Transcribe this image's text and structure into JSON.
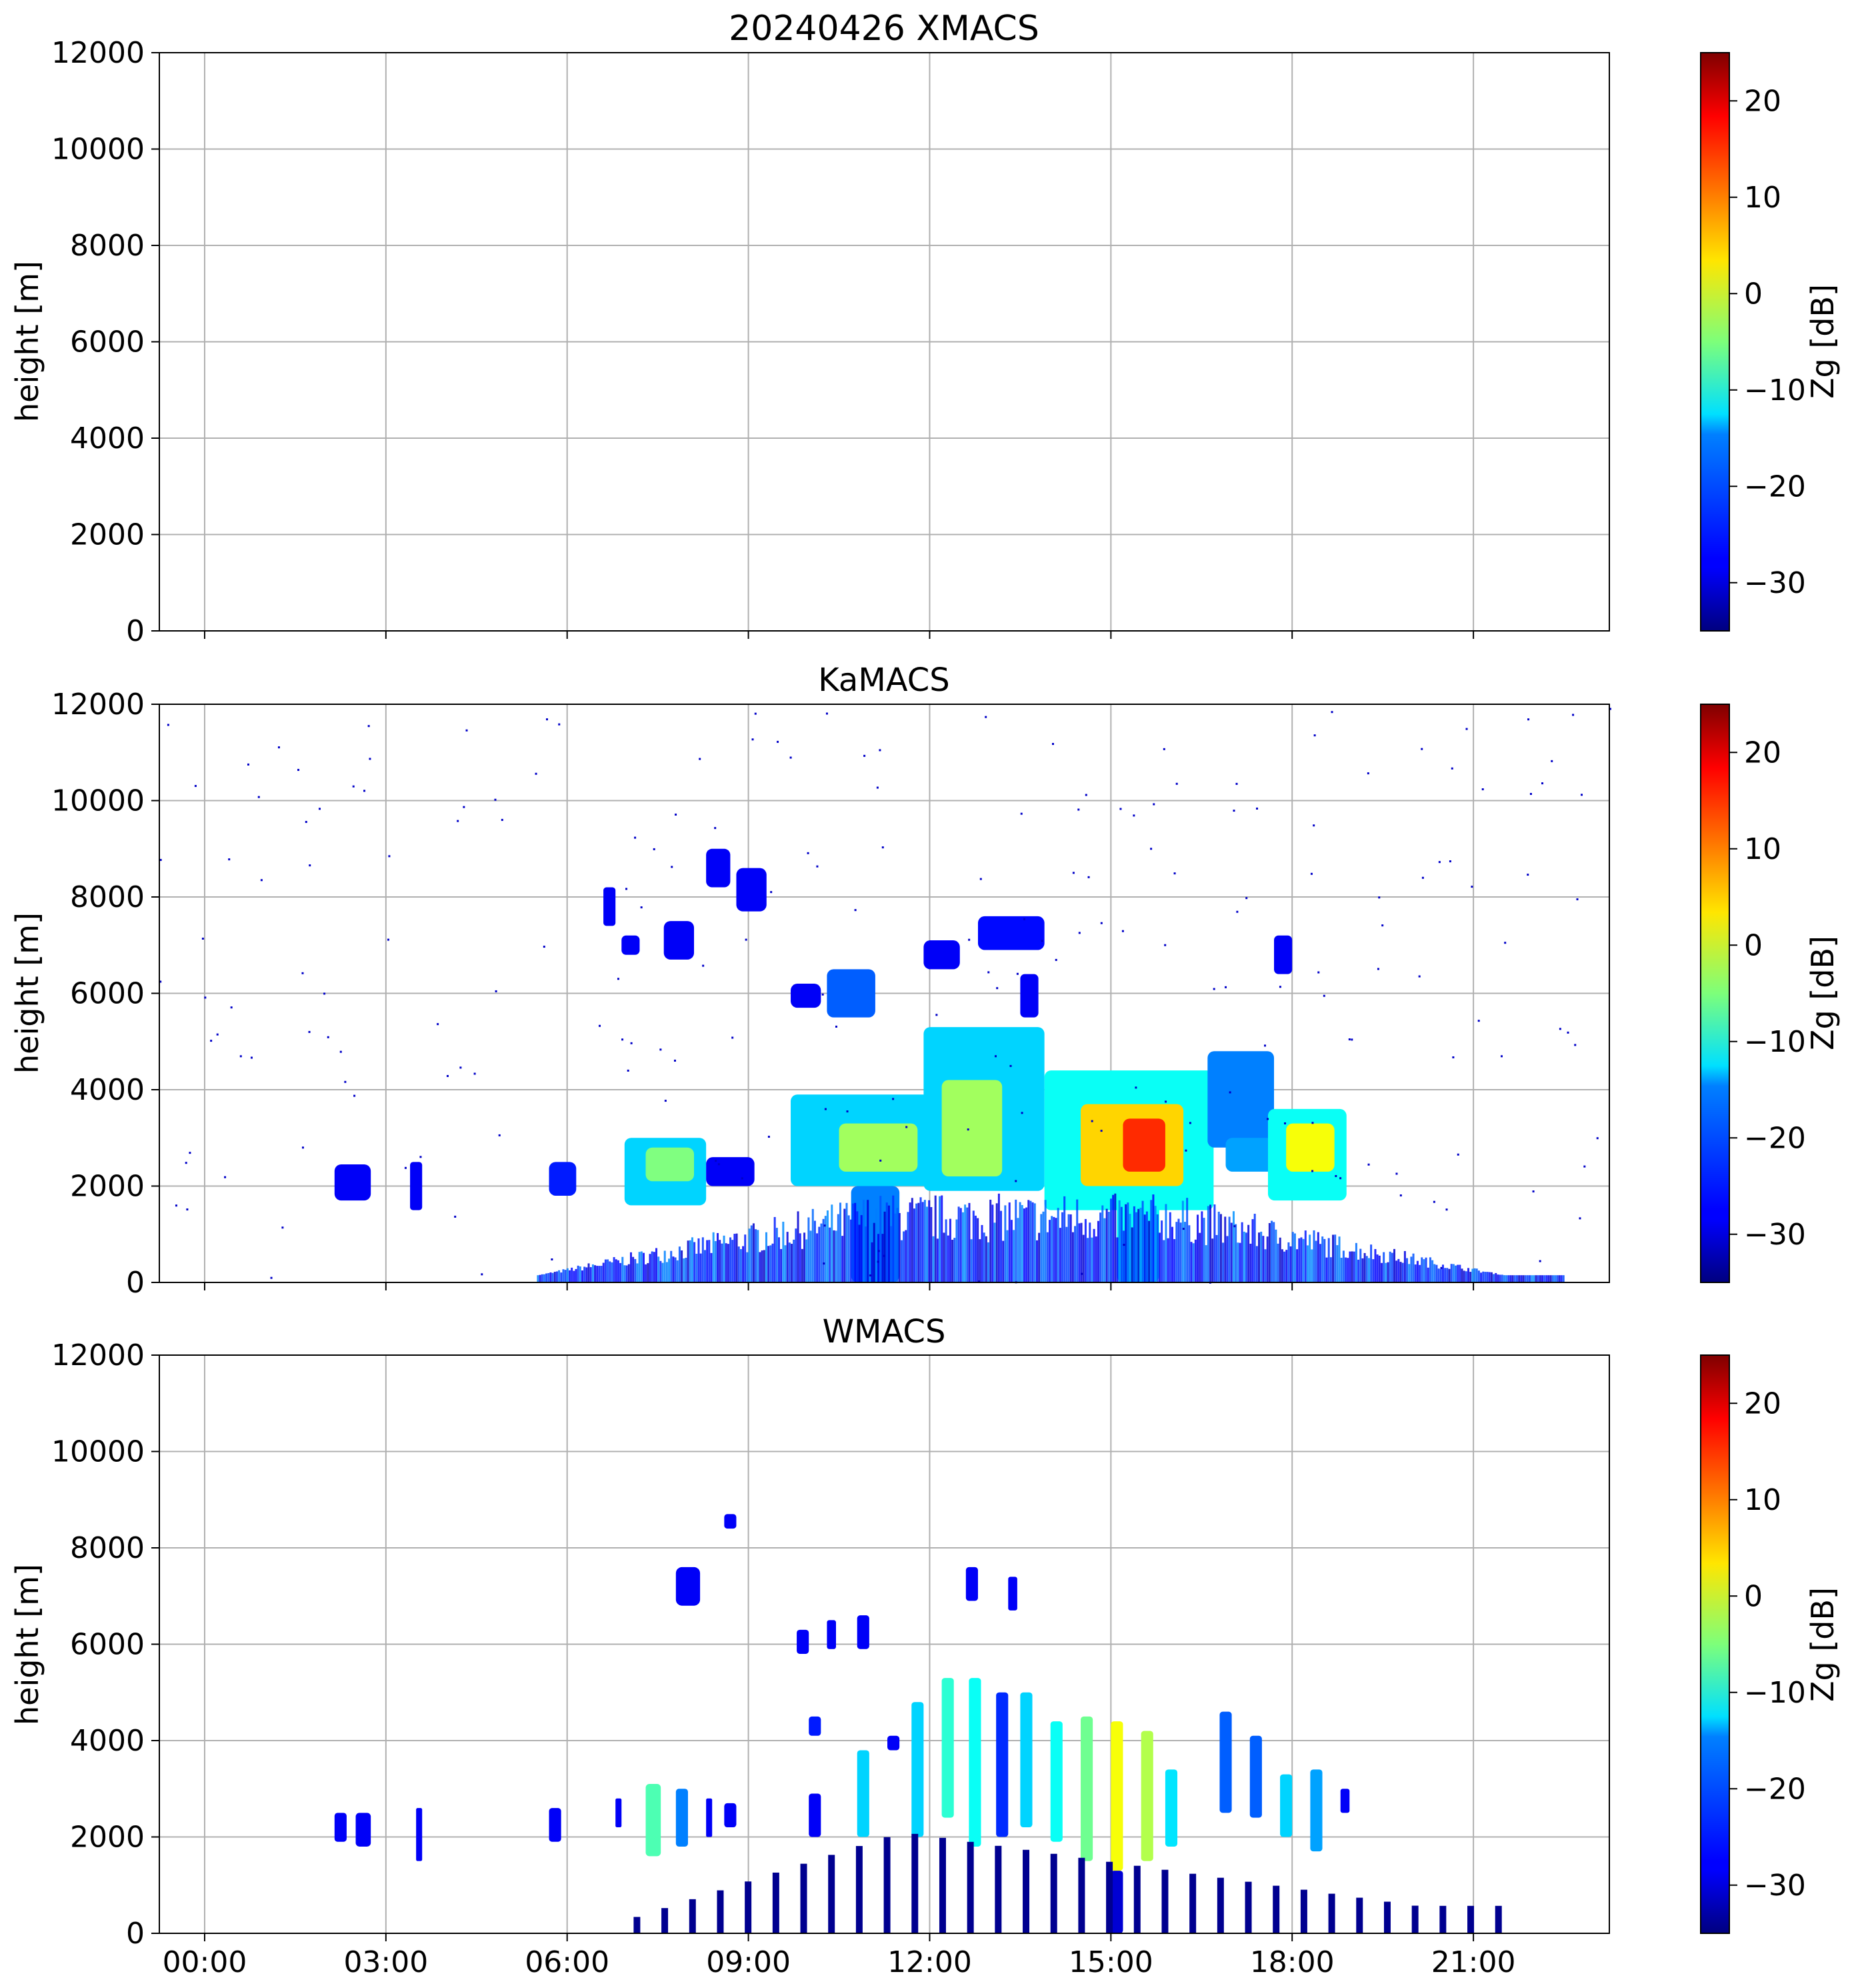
{
  "chart_data": [
    {
      "type": "heatmap",
      "title": "20240426 XMACS",
      "xlabel": "",
      "ylabel": "height [m]",
      "ylim": [
        0,
        12000
      ],
      "xlim_hours": [
        -0.75,
        23.25
      ],
      "yticks": [
        0,
        2000,
        4000,
        6000,
        8000,
        10000,
        12000
      ],
      "xtick_labels": [],
      "grid": true,
      "colorbar": {
        "label": "Zg [dB]",
        "range": [
          -35,
          25
        ],
        "ticks": [
          -30,
          -20,
          -10,
          0,
          10,
          20
        ]
      },
      "echoes": []
    },
    {
      "type": "heatmap",
      "title": "KaMACS",
      "xlabel": "",
      "ylabel": "height [m]",
      "ylim": [
        0,
        12000
      ],
      "xlim_hours": [
        -0.75,
        23.25
      ],
      "yticks": [
        0,
        2000,
        4000,
        6000,
        8000,
        10000,
        12000
      ],
      "xtick_labels": [],
      "grid": true,
      "colorbar": {
        "label": "Zg [dB]",
        "range": [
          -35,
          25
        ],
        "ticks": [
          -30,
          -20,
          -10,
          0,
          10,
          20
        ]
      },
      "echoes": [
        {
          "t0": 2.15,
          "t1": 2.75,
          "h0": 1700,
          "h1": 2450,
          "z": -28
        },
        {
          "t0": 3.4,
          "t1": 3.6,
          "h0": 1500,
          "h1": 2500,
          "z": -28
        },
        {
          "t0": 5.7,
          "t1": 6.15,
          "h0": 1800,
          "h1": 2500,
          "z": -26
        },
        {
          "t0": 6.95,
          "t1": 8.3,
          "h0": 1600,
          "h1": 3000,
          "z": -15
        },
        {
          "t0": 7.3,
          "t1": 8.1,
          "h0": 2100,
          "h1": 2800,
          "z": -5
        },
        {
          "t0": 8.3,
          "t1": 9.1,
          "h0": 2000,
          "h1": 2600,
          "z": -28
        },
        {
          "t0": 6.6,
          "t1": 6.8,
          "h0": 7400,
          "h1": 8200,
          "z": -28
        },
        {
          "t0": 6.9,
          "t1": 7.2,
          "h0": 6800,
          "h1": 7200,
          "z": -28
        },
        {
          "t0": 7.6,
          "t1": 8.1,
          "h0": 6700,
          "h1": 7500,
          "z": -28
        },
        {
          "t0": 8.3,
          "t1": 8.7,
          "h0": 8200,
          "h1": 9000,
          "z": -28
        },
        {
          "t0": 8.8,
          "t1": 9.3,
          "h0": 7700,
          "h1": 8600,
          "z": -28
        },
        {
          "t0": 9.7,
          "t1": 10.2,
          "h0": 5700,
          "h1": 6200,
          "z": -28
        },
        {
          "t0": 10.3,
          "t1": 11.1,
          "h0": 5500,
          "h1": 6500,
          "z": -22
        },
        {
          "t0": 11.9,
          "t1": 12.5,
          "h0": 6500,
          "h1": 7100,
          "z": -28
        },
        {
          "t0": 12.8,
          "t1": 13.9,
          "h0": 6900,
          "h1": 7600,
          "z": -27
        },
        {
          "t0": 13.5,
          "t1": 13.8,
          "h0": 5500,
          "h1": 6400,
          "z": -28
        },
        {
          "t0": 17.7,
          "t1": 18.0,
          "h0": 6400,
          "h1": 7200,
          "z": -28
        },
        {
          "t0": 9.7,
          "t1": 12.0,
          "h0": 2000,
          "h1": 3900,
          "z": -15
        },
        {
          "t0": 10.5,
          "t1": 11.8,
          "h0": 2300,
          "h1": 3300,
          "z": -3
        },
        {
          "t0": 11.9,
          "t1": 13.9,
          "h0": 1900,
          "h1": 5300,
          "z": -15
        },
        {
          "t0": 12.2,
          "t1": 13.2,
          "h0": 2200,
          "h1": 4200,
          "z": -3
        },
        {
          "t0": 13.9,
          "t1": 16.7,
          "h0": 1500,
          "h1": 4400,
          "z": -12
        },
        {
          "t0": 14.5,
          "t1": 16.2,
          "h0": 2000,
          "h1": 3700,
          "z": 5
        },
        {
          "t0": 15.2,
          "t1": 15.9,
          "h0": 2300,
          "h1": 3400,
          "z": 15
        },
        {
          "t0": 16.6,
          "t1": 17.7,
          "h0": 2800,
          "h1": 4800,
          "z": -20
        },
        {
          "t0": 16.9,
          "t1": 17.7,
          "h0": 2300,
          "h1": 3000,
          "z": -18
        },
        {
          "t0": 17.6,
          "t1": 18.9,
          "h0": 1700,
          "h1": 3600,
          "z": -12
        },
        {
          "t0": 17.9,
          "t1": 18.7,
          "h0": 2300,
          "h1": 3300,
          "z": 2
        },
        {
          "t0": 10.7,
          "t1": 11.5,
          "h0": 0,
          "h1": 2000,
          "z": -20
        },
        {
          "t0": 15.1,
          "t1": 15.8,
          "h0": 0,
          "h1": 1800,
          "z": -12
        }
      ]
    },
    {
      "type": "heatmap",
      "title": "WMACS",
      "xlabel": "",
      "ylabel": "height [m]",
      "ylim": [
        0,
        12000
      ],
      "xlim_hours": [
        -0.75,
        23.25
      ],
      "yticks": [
        0,
        2000,
        4000,
        6000,
        8000,
        10000,
        12000
      ],
      "xtick_labels": [
        "00:00",
        "03:00",
        "06:00",
        "09:00",
        "12:00",
        "15:00",
        "18:00",
        "21:00"
      ],
      "grid": true,
      "colorbar": {
        "label": "Zg [dB]",
        "range": [
          -35,
          25
        ],
        "ticks": [
          -30,
          -20,
          -10,
          0,
          10,
          20
        ]
      },
      "echoes": [
        {
          "t0": 2.15,
          "t1": 2.35,
          "h0": 1900,
          "h1": 2500,
          "z": -28
        },
        {
          "t0": 2.5,
          "t1": 2.75,
          "h0": 1800,
          "h1": 2500,
          "z": -28
        },
        {
          "t0": 3.5,
          "t1": 3.6,
          "h0": 1500,
          "h1": 2600,
          "z": -28
        },
        {
          "t0": 5.7,
          "t1": 5.9,
          "h0": 1900,
          "h1": 2600,
          "z": -28
        },
        {
          "t0": 6.8,
          "t1": 6.9,
          "h0": 2200,
          "h1": 2800,
          "z": -28
        },
        {
          "t0": 7.3,
          "t1": 7.55,
          "h0": 1600,
          "h1": 3100,
          "z": -8
        },
        {
          "t0": 7.8,
          "t1": 8.0,
          "h0": 1800,
          "h1": 3000,
          "z": -20
        },
        {
          "t0": 8.3,
          "t1": 8.4,
          "h0": 2000,
          "h1": 2800,
          "z": -28
        },
        {
          "t0": 8.6,
          "t1": 8.8,
          "h0": 2200,
          "h1": 2700,
          "z": -28
        },
        {
          "t0": 7.8,
          "t1": 8.2,
          "h0": 6800,
          "h1": 7600,
          "z": -28
        },
        {
          "t0": 8.6,
          "t1": 8.8,
          "h0": 8400,
          "h1": 8700,
          "z": -28
        },
        {
          "t0": 9.8,
          "t1": 10.0,
          "h0": 5800,
          "h1": 6300,
          "z": -28
        },
        {
          "t0": 10.3,
          "t1": 10.45,
          "h0": 5900,
          "h1": 6500,
          "z": -28
        },
        {
          "t0": 10.8,
          "t1": 11.0,
          "h0": 5900,
          "h1": 6600,
          "z": -28
        },
        {
          "t0": 12.6,
          "t1": 12.8,
          "h0": 6900,
          "h1": 7600,
          "z": -28
        },
        {
          "t0": 13.3,
          "t1": 13.45,
          "h0": 6700,
          "h1": 7400,
          "z": -28
        },
        {
          "t0": 10.0,
          "t1": 10.2,
          "h0": 2000,
          "h1": 2900,
          "z": -28
        },
        {
          "t0": 10.0,
          "t1": 10.2,
          "h0": 4100,
          "h1": 4500,
          "z": -26
        },
        {
          "t0": 10.8,
          "t1": 11.0,
          "h0": 2000,
          "h1": 3800,
          "z": -15
        },
        {
          "t0": 11.3,
          "t1": 11.5,
          "h0": 3800,
          "h1": 4100,
          "z": -28
        },
        {
          "t0": 11.7,
          "t1": 11.9,
          "h0": 2000,
          "h1": 4800,
          "z": -15
        },
        {
          "t0": 12.2,
          "t1": 12.4,
          "h0": 2400,
          "h1": 5300,
          "z": -10
        },
        {
          "t0": 12.65,
          "t1": 12.85,
          "h0": 1800,
          "h1": 5300,
          "z": -12
        },
        {
          "t0": 13.1,
          "t1": 13.3,
          "h0": 2000,
          "h1": 5000,
          "z": -25
        },
        {
          "t0": 13.5,
          "t1": 13.7,
          "h0": 2200,
          "h1": 5000,
          "z": -15
        },
        {
          "t0": 14.0,
          "t1": 14.2,
          "h0": 1900,
          "h1": 4400,
          "z": -12
        },
        {
          "t0": 14.5,
          "t1": 14.7,
          "h0": 1500,
          "h1": 4500,
          "z": -6
        },
        {
          "t0": 15.0,
          "t1": 15.2,
          "h0": 1300,
          "h1": 4400,
          "z": 2
        },
        {
          "t0": 15.5,
          "t1": 15.7,
          "h0": 1500,
          "h1": 4200,
          "z": -2
        },
        {
          "t0": 15.9,
          "t1": 16.1,
          "h0": 1800,
          "h1": 3400,
          "z": -14
        },
        {
          "t0": 16.8,
          "t1": 17.0,
          "h0": 2500,
          "h1": 4600,
          "z": -22
        },
        {
          "t0": 17.3,
          "t1": 17.5,
          "h0": 2400,
          "h1": 4100,
          "z": -22
        },
        {
          "t0": 17.8,
          "t1": 18.0,
          "h0": 2000,
          "h1": 3300,
          "z": -15
        },
        {
          "t0": 18.3,
          "t1": 18.5,
          "h0": 1700,
          "h1": 3400,
          "z": -18
        },
        {
          "t0": 18.8,
          "t1": 18.95,
          "h0": 2500,
          "h1": 3000,
          "z": -28
        },
        {
          "t0": 15.0,
          "t1": 15.2,
          "h0": 0,
          "h1": 1300,
          "z": -30
        }
      ]
    }
  ]
}
